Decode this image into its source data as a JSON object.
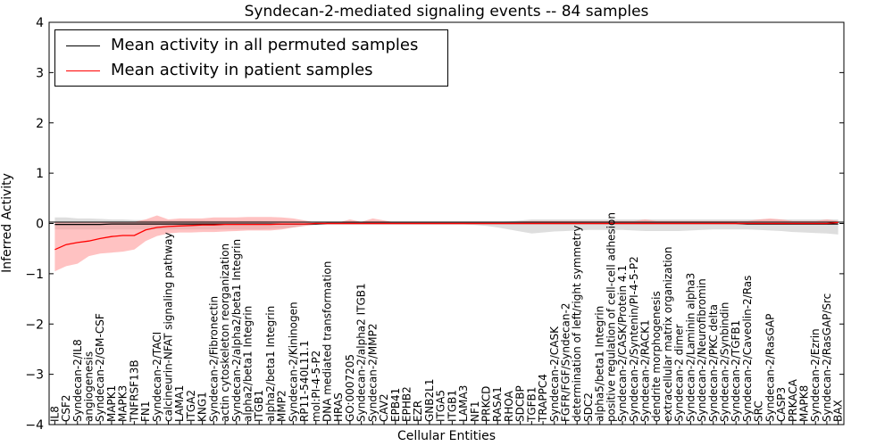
{
  "colors": {
    "permuted": "#000000",
    "patient": "#ff0000",
    "permuted_band": "#c8c8c8",
    "patient_band": "#ff9090"
  },
  "chart_data": {
    "type": "line",
    "title": "Syndecan-2-mediated signaling events -- 84 samples",
    "xlabel": "Cellular Entities",
    "ylabel": "Inferred Activity",
    "ylim": [
      -4,
      4
    ],
    "yticks": [
      "4",
      "3",
      "2",
      "1",
      "0",
      "−1",
      "−2",
      "−3",
      "−4"
    ],
    "ytick_values": [
      4,
      3,
      2,
      1,
      0,
      -1,
      -2,
      -3,
      -4
    ],
    "legend": [
      {
        "label": "Mean activity in all permuted samples",
        "color": "#000000"
      },
      {
        "label": "Mean activity in patient samples",
        "color": "#ff0000"
      }
    ],
    "legend_position": "top-left",
    "categories": [
      "IL8",
      "CSF2",
      "Syndecan-2/IL8",
      "angiogenesis",
      "Syndecan-2/GM-CSF",
      "MAPK1",
      "MAPK3",
      "TNFRSF13B",
      "FN1",
      "Syndecan-2/TACI",
      "calcineurin-NFAT signaling pathway",
      "LAMA1",
      "ITGA2",
      "KNG1",
      "Syndecan-2/Fibronectin",
      "actin cytoskeleton reorganization",
      "Syndecan-2/alpha2/beta1 Integrin",
      "alpha2/beta1 Integrin",
      "ITGB1",
      "alpha2/beta1 Integrin",
      "MMP2",
      "Syndecan-2/Kininogen",
      "RP11-540L11.1",
      "mol:PI-4-5-P2",
      "DNA mediated transformation",
      "HRAS",
      "GO:0007205",
      "Syndecan-2/alpha2 ITGB1",
      "Syndecan-2/MMP2",
      "CAV2",
      "EPB41",
      "EPHB2",
      "EZR",
      "GNB2L1",
      "ITGA5",
      "ITGB1",
      "LAMA3",
      "NF1",
      "PRKCD",
      "RASA1",
      "RHOA",
      "SDCBP",
      "TGFB1",
      "TRAPPC4",
      "Syndecan-2/CASK",
      "FGFR/FGF/Syndecan-2",
      "determination of left/right symmetry",
      "SDC2",
      "alpha5/beta1 Integrin",
      "positive regulation of cell-cell adhesion",
      "Syndecan-2/CASK/Protein 4.1",
      "Syndecan-2/Syntenin/PI-4-5-P2",
      "Syndecan-2/RACK1",
      "dendrite morphogenesis",
      "extracellular matrix organization",
      "Syndecan-2 dimer",
      "Syndecan-2/Laminin alpha3",
      "Syndecan-2/Neurofibromin",
      "Syndecan-2/PKC delta",
      "Syndecan-2/Synbindin",
      "Syndecan-2/TGFB1",
      "Syndecan-2/Caveolin-2/Ras",
      "SRC",
      "Syndecan-2/RasGAP",
      "CASP3",
      "PRKACA",
      "MAPK8",
      "Syndecan-2/Ezrin",
      "Syndecan-2/RasGAP/Src",
      "BAX"
    ],
    "series": [
      {
        "name": "Mean activity in all permuted samples",
        "values": [
          -0.02,
          -0.02,
          -0.02,
          -0.02,
          -0.02,
          -0.01,
          -0.01,
          -0.01,
          -0.01,
          -0.01,
          -0.01,
          -0.01,
          -0.01,
          -0.01,
          -0.01,
          -0.01,
          -0.01,
          -0.01,
          -0.01,
          -0.01,
          -0.01,
          -0.01,
          -0.01,
          -0.01,
          0,
          0,
          0,
          0,
          0,
          0,
          0,
          0,
          0,
          0,
          0,
          0,
          0,
          0,
          0,
          0,
          0,
          0,
          0,
          0,
          0,
          0,
          0,
          0,
          0,
          0,
          0,
          0,
          0,
          0,
          0,
          0,
          0,
          0,
          0,
          0,
          0,
          -0.01,
          -0.01,
          -0.01,
          -0.01,
          -0.01,
          -0.01,
          -0.01,
          -0.01,
          -0.01
        ],
        "band_upper": [
          0.12,
          0.12,
          0.1,
          0.1,
          0.09,
          0.08,
          0.08,
          0.07,
          0.07,
          0.06,
          0.06,
          0.06,
          0.06,
          0.06,
          0.05,
          0.05,
          0.05,
          0.05,
          0.05,
          0.04,
          0.04,
          0.03,
          0.02,
          0.02,
          0.02,
          0.02,
          0.02,
          0.02,
          0.02,
          0.02,
          0.02,
          0.02,
          0.02,
          0.02,
          0.02,
          0.02,
          0.02,
          0.02,
          0.02,
          0.03,
          0.04,
          0.06,
          0.08,
          0.08,
          0.08,
          0.08,
          0.08,
          0.08,
          0.08,
          0.08,
          0.08,
          0.08,
          0.08,
          0.08,
          0.08,
          0.08,
          0.08,
          0.08,
          0.08,
          0.08,
          0.08,
          0.08,
          0.08,
          0.08,
          0.08,
          0.08,
          0.08,
          0.08,
          0.08,
          0.08
        ],
        "band_lower": [
          -0.12,
          -0.12,
          -0.12,
          -0.12,
          -0.12,
          -0.12,
          -0.12,
          -0.12,
          -0.12,
          -0.12,
          -0.12,
          -0.12,
          -0.12,
          -0.12,
          -0.12,
          -0.12,
          -0.12,
          -0.12,
          -0.12,
          -0.11,
          -0.1,
          -0.08,
          -0.05,
          -0.03,
          -0.02,
          -0.02,
          -0.02,
          -0.02,
          -0.02,
          -0.02,
          -0.02,
          -0.02,
          -0.02,
          -0.02,
          -0.02,
          -0.02,
          -0.02,
          -0.03,
          -0.05,
          -0.08,
          -0.12,
          -0.16,
          -0.2,
          -0.18,
          -0.16,
          -0.15,
          -0.14,
          -0.13,
          -0.13,
          -0.13,
          -0.13,
          -0.14,
          -0.15,
          -0.15,
          -0.15,
          -0.15,
          -0.14,
          -0.13,
          -0.12,
          -0.12,
          -0.12,
          -0.12,
          -0.13,
          -0.14,
          -0.15,
          -0.17,
          -0.18,
          -0.19,
          -0.2,
          -0.22
        ]
      },
      {
        "name": "Mean activity in patient samples",
        "values": [
          -0.52,
          -0.42,
          -0.38,
          -0.35,
          -0.3,
          -0.26,
          -0.24,
          -0.24,
          -0.13,
          -0.08,
          -0.06,
          -0.05,
          -0.04,
          -0.03,
          -0.03,
          -0.02,
          -0.02,
          -0.02,
          -0.02,
          -0.02,
          -0.01,
          -0.01,
          -0.01,
          0,
          0,
          0,
          0,
          0,
          0,
          0,
          0,
          0,
          0,
          0,
          0,
          0,
          0,
          0,
          0,
          0,
          0,
          0,
          0,
          0,
          0,
          0,
          0,
          0,
          0,
          0,
          0,
          0,
          0,
          0,
          0,
          0,
          0,
          0,
          0,
          0,
          0,
          0,
          0,
          0,
          0,
          0,
          0,
          0,
          0,
          0.02
        ],
        "band_upper": [
          0.02,
          0.02,
          0.02,
          0.02,
          0.02,
          0.02,
          0.02,
          0.03,
          0.08,
          0.16,
          0.08,
          0.1,
          0.1,
          0.1,
          0.12,
          0.12,
          0.12,
          0.13,
          0.13,
          0.13,
          0.12,
          0.1,
          0.06,
          0.02,
          0.02,
          0.02,
          0.08,
          0.03,
          0.1,
          0.06,
          0.02,
          0.02,
          0.02,
          0.02,
          0.02,
          0.02,
          0.02,
          0.02,
          0.02,
          0.02,
          0.03,
          0.04,
          0.05,
          0.05,
          0.05,
          0.05,
          0.05,
          0.05,
          0.05,
          0.05,
          0.05,
          0.05,
          0.08,
          0.05,
          0.05,
          0.05,
          0.05,
          0.05,
          0.05,
          0.05,
          0.05,
          0.05,
          0.08,
          0.1,
          0.08,
          0.05,
          0.05,
          0.05,
          0.08,
          0.05
        ],
        "band_lower": [
          -0.95,
          -0.85,
          -0.8,
          -0.65,
          -0.6,
          -0.58,
          -0.56,
          -0.52,
          -0.35,
          -0.25,
          -0.2,
          -0.18,
          -0.18,
          -0.17,
          -0.17,
          -0.16,
          -0.15,
          -0.14,
          -0.14,
          -0.14,
          -0.12,
          -0.08,
          -0.05,
          -0.02,
          -0.02,
          -0.02,
          -0.02,
          -0.02,
          -0.02,
          -0.02,
          -0.02,
          -0.02,
          -0.02,
          -0.02,
          -0.02,
          -0.02,
          -0.02,
          -0.02,
          -0.02,
          -0.02,
          -0.02,
          -0.02,
          -0.02,
          -0.02,
          -0.02,
          -0.02,
          -0.02,
          -0.02,
          -0.02,
          -0.02,
          -0.02,
          -0.02,
          -0.02,
          -0.02,
          -0.02,
          -0.02,
          -0.02,
          -0.02,
          -0.02,
          -0.02,
          -0.02,
          -0.02,
          -0.02,
          -0.02,
          -0.02,
          -0.02,
          -0.02,
          -0.02,
          -0.02,
          -0.02
        ]
      }
    ]
  }
}
